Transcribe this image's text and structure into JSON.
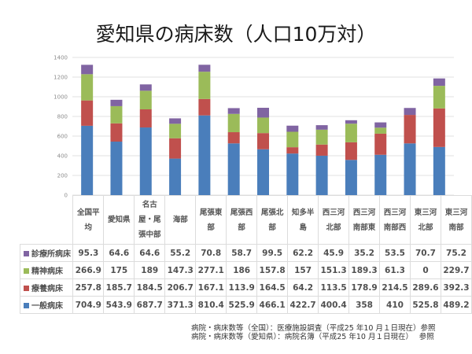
{
  "title": "愛知県の病床数（人口10万対）",
  "chart_data": {
    "type": "bar",
    "stacked": true,
    "title": "愛知県の病床数（人口10万対）",
    "xlabel": "",
    "ylabel": "",
    "ylim": [
      0,
      1400
    ],
    "yticks": [
      0,
      200,
      400,
      600,
      800,
      1000,
      1200,
      1400
    ],
    "grid": true,
    "legend": "table-left",
    "categories": [
      [
        "全国平",
        "均"
      ],
      [
        "愛知県"
      ],
      [
        "名古",
        "屋・尾",
        "張中部"
      ],
      [
        "海部"
      ],
      [
        "尾張東",
        "部"
      ],
      [
        "尾張西",
        "部"
      ],
      [
        "尾張北",
        "部"
      ],
      [
        "知多半",
        "島"
      ],
      [
        "西三河",
        "北部"
      ],
      [
        "西三河",
        "南部東"
      ],
      [
        "西三河",
        "南部西"
      ],
      [
        "東三河",
        "北部"
      ],
      [
        "東三河",
        "南部"
      ]
    ],
    "series": [
      {
        "name": "一般病床",
        "color": "#4a7ebb",
        "values": [
          704.9,
          543.9,
          687.7,
          371.3,
          810.4,
          525.9,
          466.1,
          422.7,
          400.4,
          358,
          410,
          525.8,
          489.2
        ]
      },
      {
        "name": "療養病床",
        "color": "#c0504d",
        "values": [
          257.8,
          185.7,
          184.5,
          206.7,
          167.1,
          113.9,
          164.5,
          64.2,
          113.5,
          178.9,
          214.5,
          289.6,
          392.3
        ]
      },
      {
        "name": "精神病床",
        "color": "#9bbb59",
        "values": [
          266.9,
          175,
          189,
          147.3,
          277.1,
          186,
          157.8,
          157,
          151.3,
          189.3,
          61.3,
          0,
          229.7
        ]
      },
      {
        "name": "診療所病床",
        "color": "#8064a2",
        "values": [
          95.3,
          64.6,
          64.6,
          55.2,
          70.8,
          58.7,
          99.5,
          62.2,
          45.9,
          35.2,
          53.5,
          70.7,
          75.2
        ]
      }
    ],
    "table_row_order": [
      3,
      2,
      1,
      0
    ]
  },
  "notes": [
    "病院・病床数等（全国）：医療施設調査（平成25 年10 月１日現在）参照",
    "病院・病床数等（愛知県）：病院名簿（平成25 年10 月１日現在）　 参照"
  ]
}
